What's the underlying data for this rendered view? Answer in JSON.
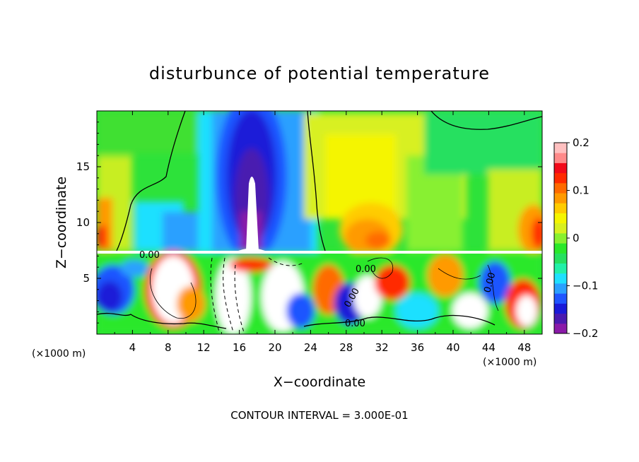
{
  "chart_data": {
    "type": "heatmap",
    "title": "disturbunce of potential temperature",
    "xlabel": "X−coordinate",
    "ylabel": "Z−coordinate",
    "x_unit_left": "(×1000 m)",
    "x_unit_right": "(×1000 m)",
    "xlim": [
      0,
      50
    ],
    "ylim": [
      0,
      20
    ],
    "x_ticks": [
      4,
      8,
      12,
      16,
      20,
      24,
      28,
      32,
      36,
      40,
      44,
      48
    ],
    "x_tick_labels": [
      "4",
      "8",
      "12",
      "16",
      "20",
      "24",
      "28",
      "32",
      "36",
      "40",
      "44",
      "48"
    ],
    "y_ticks": [
      5,
      10,
      15
    ],
    "y_tick_labels": [
      "5",
      "10",
      "15"
    ],
    "colorbar": {
      "range": [
        -0.2,
        0.2
      ],
      "ticks": [
        0.2,
        0.1,
        0,
        -0.1,
        -0.2
      ],
      "tick_labels": [
        "0.2",
        "0.1",
        "0",
        "−0.1",
        "−0.2"
      ],
      "colors": [
        "#8a1aa8",
        "#4a1ab0",
        "#1a1ad8",
        "#1f55ff",
        "#2aa0ff",
        "#1fe0ff",
        "#22f0a8",
        "#26e060",
        "#2ae82a",
        "#88f030",
        "#d8f020",
        "#f5f500",
        "#ffcc00",
        "#ff9a00",
        "#ff6a00",
        "#ff2a00",
        "#f20a1a",
        "#ff8a8a",
        "#ffc0c0"
      ]
    },
    "contour_labels": [
      "0.00",
      "0.00",
      "0.00",
      "0.00",
      "0.00"
    ],
    "contour_interval_text": "CONTOUR INTERVAL = 3.000E-01"
  }
}
